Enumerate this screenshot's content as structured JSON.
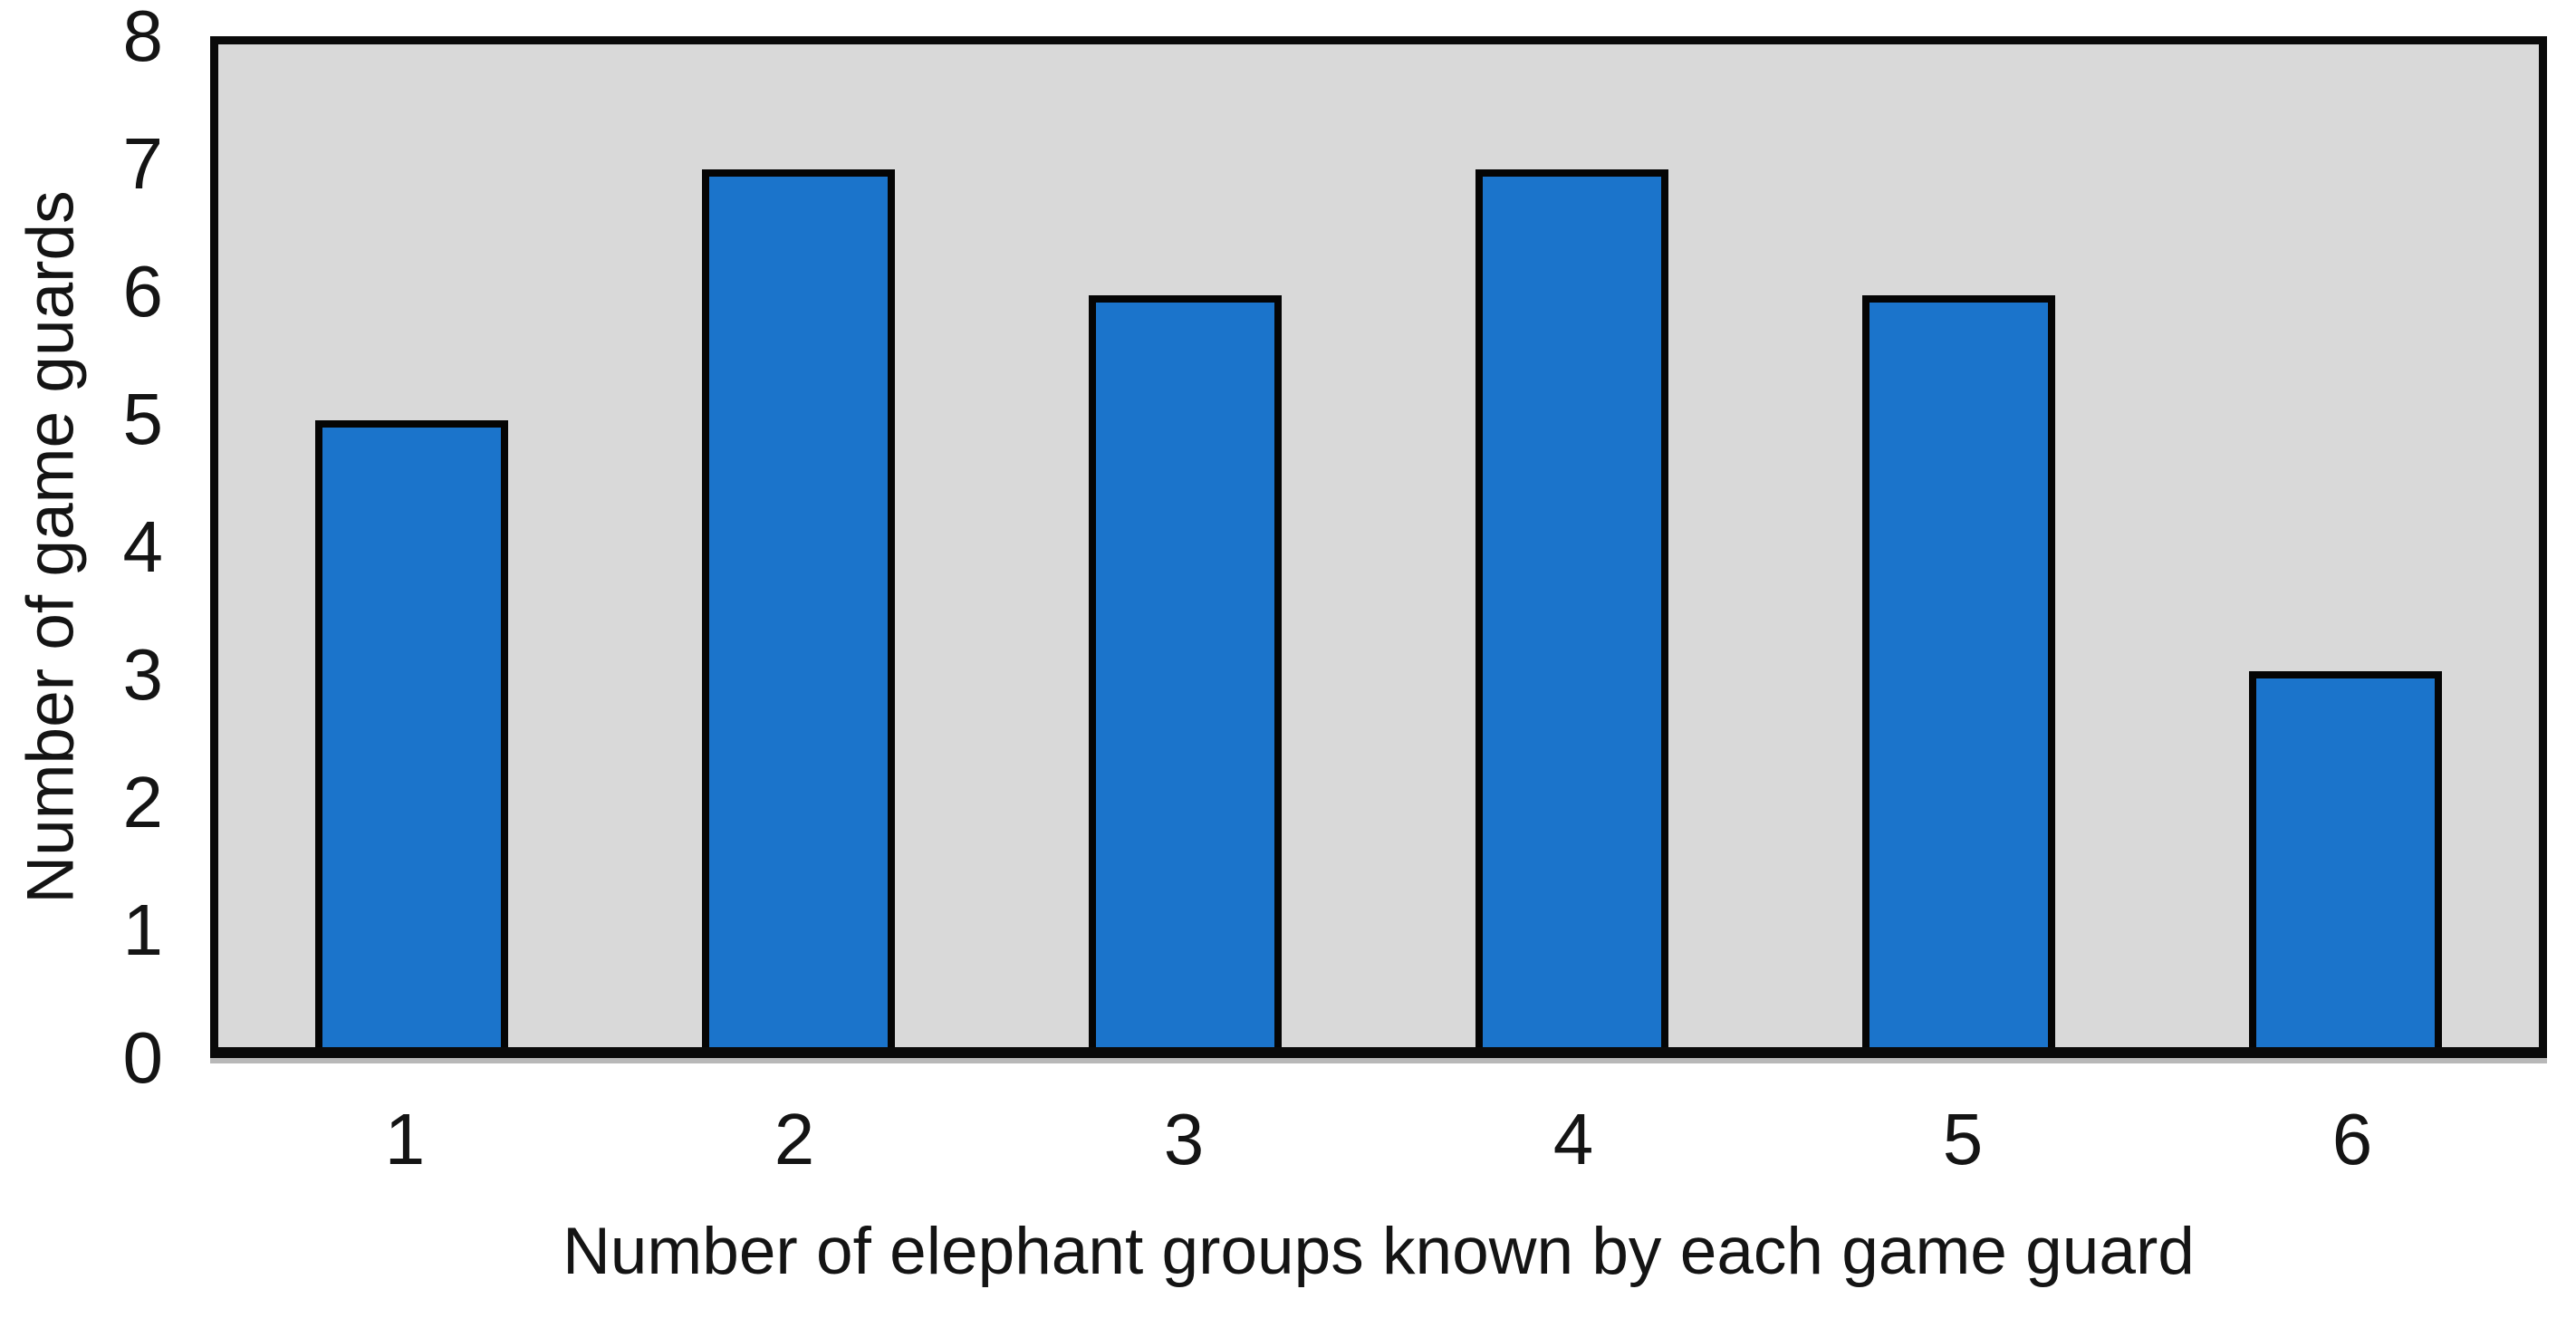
{
  "chart_data": {
    "type": "bar",
    "categories": [
      "1",
      "2",
      "3",
      "4",
      "5",
      "6"
    ],
    "values": [
      5,
      7,
      6,
      7,
      6,
      3
    ],
    "title": "",
    "xlabel": "Number of elephant groups known by each game guard",
    "ylabel": "Number of game guards",
    "ylim": [
      0,
      8
    ],
    "yticks": [
      0,
      1,
      2,
      3,
      4,
      5,
      6,
      7,
      8
    ],
    "grid": false,
    "legend_position": "none",
    "colors": {
      "bar_fill": "#1b74cb",
      "bar_border": "#050505",
      "plot_background": "#d9d9d9",
      "axis_border": "#0a0a0a",
      "text": "#141414",
      "figure_background": "#ffffff"
    }
  }
}
